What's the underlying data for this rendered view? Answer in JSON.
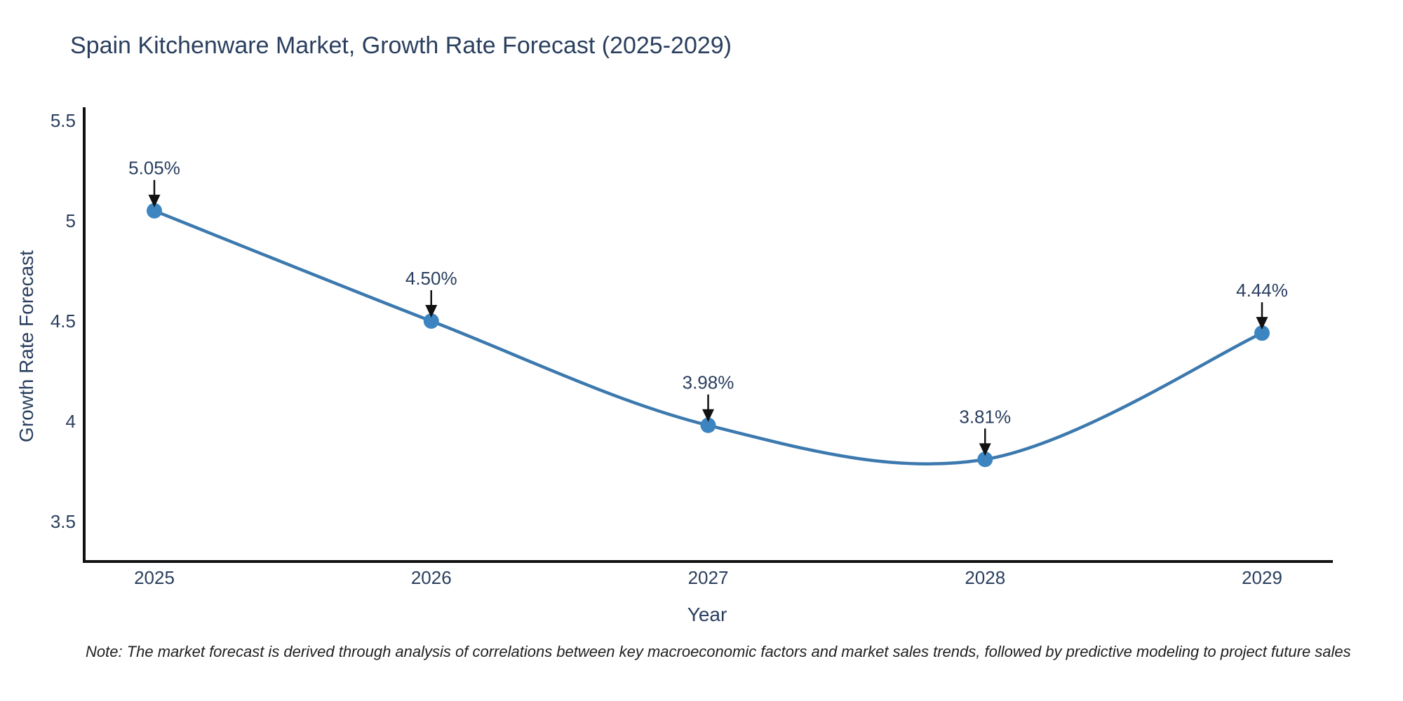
{
  "chart_data": {
    "type": "line",
    "title": "Spain Kitchenware Market, Growth Rate Forecast (2025-2029)",
    "xlabel": "Year",
    "ylabel": "Growth Rate Forecast",
    "categories": [
      "2025",
      "2026",
      "2027",
      "2028",
      "2029"
    ],
    "values": [
      5.05,
      4.5,
      3.98,
      3.81,
      4.44
    ],
    "point_labels": [
      "5.05%",
      "4.50%",
      "3.98%",
      "3.81%",
      "4.44%"
    ],
    "yticks": [
      5.5,
      5,
      4.5,
      4,
      3.5
    ],
    "ytick_labels": [
      "5.5",
      "5",
      "4.5",
      "4",
      "3.5"
    ],
    "ylim": [
      3.3,
      5.62
    ],
    "line_shape": "spline",
    "show_markers": true,
    "grid": false,
    "legend_position": "none",
    "annotation_style": "value-label-with-down-arrow",
    "footnote": "Note: The market forecast is derived through analysis of correlations between key macroeconomic factors and market sales trends, followed by predictive modeling to project future sales",
    "colors": {
      "line": "#3c79ae",
      "marker": "#3d85c0",
      "axis_line": "#111111",
      "text": "#2a3f5f",
      "arrow": "#111111",
      "footnote_text": "#1f1f1f",
      "background": "#ffffff"
    }
  }
}
